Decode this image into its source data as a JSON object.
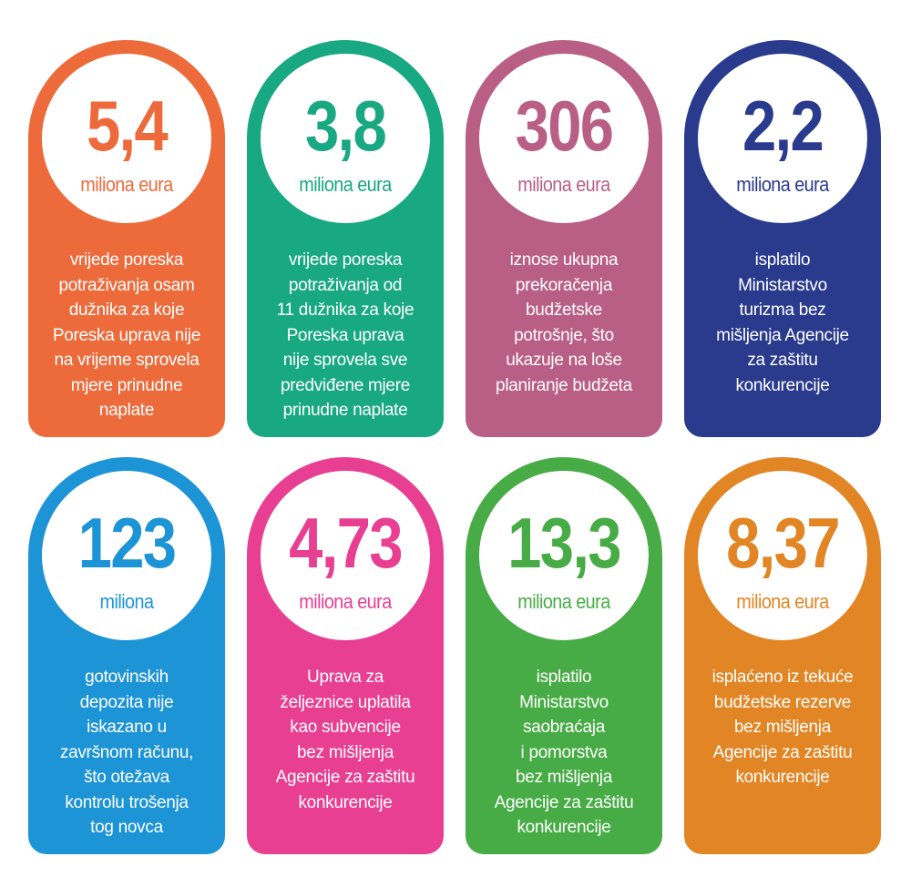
{
  "cards": [
    {
      "number": "5,4",
      "unit": "miliona eura",
      "text": "vrijede poreska\npotraživanja osam\ndužnika za koje\nPoreska uprava nije\nna vrijeme sprovela\nmjere prinudne\nnaplate",
      "color": "#ed6a3b"
    },
    {
      "number": "3,8",
      "unit": "miliona eura",
      "text": "vrijede poreska\npotraživanja od\n11 dužnika za koje\nPoreska uprava\nnije sprovela sve\npredviđene mjere\nprinudne naplate",
      "color": "#18a882"
    },
    {
      "number": "306",
      "unit": "miliona eura",
      "text": "iznose ukupna\nprekoračenja\nbudžetske\npotrošnje, što\nukazuje na loše\nplaniranje budžeta",
      "color": "#b95f85"
    },
    {
      "number": "2,2",
      "unit": "miliona eura",
      "text": "isplatilo\nMinistarstvo\nturizma bez\nmišljenja Agencije\nza zaštitu\nkonkurencije",
      "color": "#2a3a8d"
    },
    {
      "number": "123",
      "unit": "miliona",
      "text": "gotovinskih\ndepozita nije\niskazano u\nzavršnom računu,\nšto otežava\nkontrolu trošenja\ntog novca",
      "color": "#1d94d6"
    },
    {
      "number": "4,73",
      "unit": "miliona eura",
      "text": "Uprava za\nželjeznice uplatila\nkao subvencije\nbez mišljenja\nAgencije za zaštitu\nkonkurencije",
      "color": "#e83f93"
    },
    {
      "number": "13,3",
      "unit": "miliona eura",
      "text": "isplatilo\nMinistarstvo\nsaobraćaja\ni pomorstva\nbez mišljenja\nAgencije za zaštitu\nkonkurencije",
      "color": "#48ac46"
    },
    {
      "number": "8,37",
      "unit": "miliona eura",
      "text": "isplaćeno iz  tekuće\nbudžetske rezerve\nbez mišljenja\nAgencije za zaštitu\nkonkurencije",
      "color": "#e28524"
    }
  ]
}
